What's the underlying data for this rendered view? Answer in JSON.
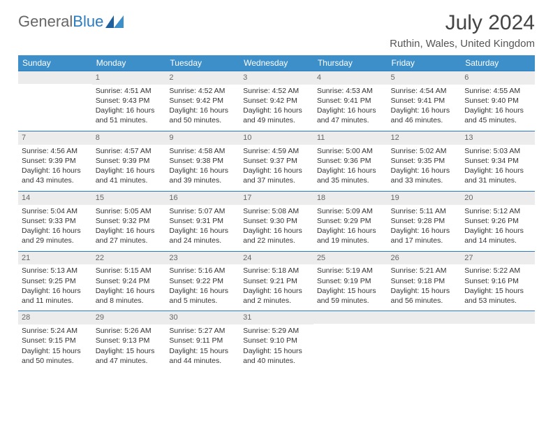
{
  "brand": {
    "word1": "General",
    "word2": "Blue"
  },
  "title": "July 2024",
  "location": "Ruthin, Wales, United Kingdom",
  "colors": {
    "header_bg": "#3d8fc9",
    "header_fg": "#ffffff",
    "daynum_bg": "#ececec",
    "rule": "#2a7bbf"
  },
  "weekdays": [
    "Sunday",
    "Monday",
    "Tuesday",
    "Wednesday",
    "Thursday",
    "Friday",
    "Saturday"
  ],
  "weeks": [
    [
      {
        "n": "",
        "lines": []
      },
      {
        "n": "1",
        "lines": [
          "Sunrise: 4:51 AM",
          "Sunset: 9:43 PM",
          "Daylight: 16 hours and 51 minutes."
        ]
      },
      {
        "n": "2",
        "lines": [
          "Sunrise: 4:52 AM",
          "Sunset: 9:42 PM",
          "Daylight: 16 hours and 50 minutes."
        ]
      },
      {
        "n": "3",
        "lines": [
          "Sunrise: 4:52 AM",
          "Sunset: 9:42 PM",
          "Daylight: 16 hours and 49 minutes."
        ]
      },
      {
        "n": "4",
        "lines": [
          "Sunrise: 4:53 AM",
          "Sunset: 9:41 PM",
          "Daylight: 16 hours and 47 minutes."
        ]
      },
      {
        "n": "5",
        "lines": [
          "Sunrise: 4:54 AM",
          "Sunset: 9:41 PM",
          "Daylight: 16 hours and 46 minutes."
        ]
      },
      {
        "n": "6",
        "lines": [
          "Sunrise: 4:55 AM",
          "Sunset: 9:40 PM",
          "Daylight: 16 hours and 45 minutes."
        ]
      }
    ],
    [
      {
        "n": "7",
        "lines": [
          "Sunrise: 4:56 AM",
          "Sunset: 9:39 PM",
          "Daylight: 16 hours and 43 minutes."
        ]
      },
      {
        "n": "8",
        "lines": [
          "Sunrise: 4:57 AM",
          "Sunset: 9:39 PM",
          "Daylight: 16 hours and 41 minutes."
        ]
      },
      {
        "n": "9",
        "lines": [
          "Sunrise: 4:58 AM",
          "Sunset: 9:38 PM",
          "Daylight: 16 hours and 39 minutes."
        ]
      },
      {
        "n": "10",
        "lines": [
          "Sunrise: 4:59 AM",
          "Sunset: 9:37 PM",
          "Daylight: 16 hours and 37 minutes."
        ]
      },
      {
        "n": "11",
        "lines": [
          "Sunrise: 5:00 AM",
          "Sunset: 9:36 PM",
          "Daylight: 16 hours and 35 minutes."
        ]
      },
      {
        "n": "12",
        "lines": [
          "Sunrise: 5:02 AM",
          "Sunset: 9:35 PM",
          "Daylight: 16 hours and 33 minutes."
        ]
      },
      {
        "n": "13",
        "lines": [
          "Sunrise: 5:03 AM",
          "Sunset: 9:34 PM",
          "Daylight: 16 hours and 31 minutes."
        ]
      }
    ],
    [
      {
        "n": "14",
        "lines": [
          "Sunrise: 5:04 AM",
          "Sunset: 9:33 PM",
          "Daylight: 16 hours and 29 minutes."
        ]
      },
      {
        "n": "15",
        "lines": [
          "Sunrise: 5:05 AM",
          "Sunset: 9:32 PM",
          "Daylight: 16 hours and 27 minutes."
        ]
      },
      {
        "n": "16",
        "lines": [
          "Sunrise: 5:07 AM",
          "Sunset: 9:31 PM",
          "Daylight: 16 hours and 24 minutes."
        ]
      },
      {
        "n": "17",
        "lines": [
          "Sunrise: 5:08 AM",
          "Sunset: 9:30 PM",
          "Daylight: 16 hours and 22 minutes."
        ]
      },
      {
        "n": "18",
        "lines": [
          "Sunrise: 5:09 AM",
          "Sunset: 9:29 PM",
          "Daylight: 16 hours and 19 minutes."
        ]
      },
      {
        "n": "19",
        "lines": [
          "Sunrise: 5:11 AM",
          "Sunset: 9:28 PM",
          "Daylight: 16 hours and 17 minutes."
        ]
      },
      {
        "n": "20",
        "lines": [
          "Sunrise: 5:12 AM",
          "Sunset: 9:26 PM",
          "Daylight: 16 hours and 14 minutes."
        ]
      }
    ],
    [
      {
        "n": "21",
        "lines": [
          "Sunrise: 5:13 AM",
          "Sunset: 9:25 PM",
          "Daylight: 16 hours and 11 minutes."
        ]
      },
      {
        "n": "22",
        "lines": [
          "Sunrise: 5:15 AM",
          "Sunset: 9:24 PM",
          "Daylight: 16 hours and 8 minutes."
        ]
      },
      {
        "n": "23",
        "lines": [
          "Sunrise: 5:16 AM",
          "Sunset: 9:22 PM",
          "Daylight: 16 hours and 5 minutes."
        ]
      },
      {
        "n": "24",
        "lines": [
          "Sunrise: 5:18 AM",
          "Sunset: 9:21 PM",
          "Daylight: 16 hours and 2 minutes."
        ]
      },
      {
        "n": "25",
        "lines": [
          "Sunrise: 5:19 AM",
          "Sunset: 9:19 PM",
          "Daylight: 15 hours and 59 minutes."
        ]
      },
      {
        "n": "26",
        "lines": [
          "Sunrise: 5:21 AM",
          "Sunset: 9:18 PM",
          "Daylight: 15 hours and 56 minutes."
        ]
      },
      {
        "n": "27",
        "lines": [
          "Sunrise: 5:22 AM",
          "Sunset: 9:16 PM",
          "Daylight: 15 hours and 53 minutes."
        ]
      }
    ],
    [
      {
        "n": "28",
        "lines": [
          "Sunrise: 5:24 AM",
          "Sunset: 9:15 PM",
          "Daylight: 15 hours and 50 minutes."
        ]
      },
      {
        "n": "29",
        "lines": [
          "Sunrise: 5:26 AM",
          "Sunset: 9:13 PM",
          "Daylight: 15 hours and 47 minutes."
        ]
      },
      {
        "n": "30",
        "lines": [
          "Sunrise: 5:27 AM",
          "Sunset: 9:11 PM",
          "Daylight: 15 hours and 44 minutes."
        ]
      },
      {
        "n": "31",
        "lines": [
          "Sunrise: 5:29 AM",
          "Sunset: 9:10 PM",
          "Daylight: 15 hours and 40 minutes."
        ]
      },
      {
        "n": "",
        "lines": []
      },
      {
        "n": "",
        "lines": []
      },
      {
        "n": "",
        "lines": []
      }
    ]
  ]
}
